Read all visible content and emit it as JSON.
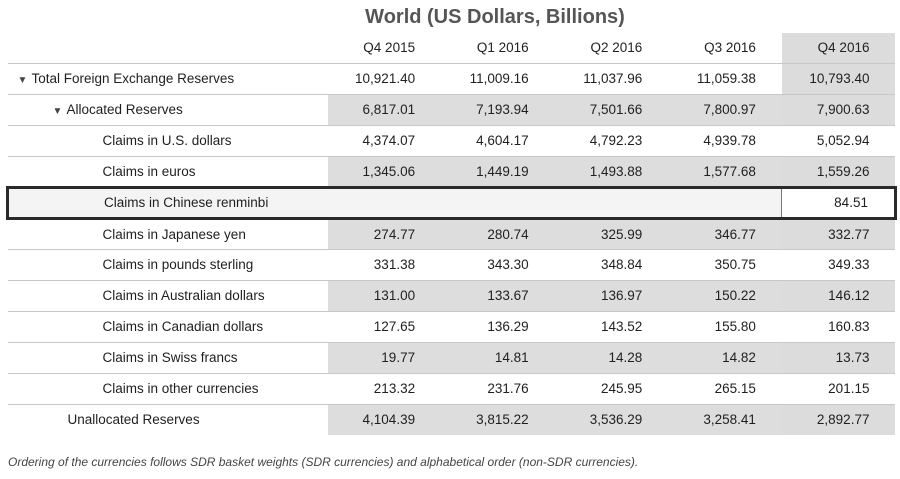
{
  "title": "World (US Dollars, Billions)",
  "columns": [
    "Q4 2015",
    "Q1 2016",
    "Q2 2016",
    "Q3 2016",
    "Q4 2016"
  ],
  "rows": [
    {
      "label": "Total Foreign Exchange Reserves",
      "values": [
        "10,921.40",
        "11,009.16",
        "11,037.96",
        "11,059.38",
        "10,793.40"
      ]
    },
    {
      "label": "Allocated Reserves",
      "values": [
        "6,817.01",
        "7,193.94",
        "7,501.66",
        "7,800.97",
        "7,900.63"
      ]
    },
    {
      "label": "Claims in U.S. dollars",
      "values": [
        "4,374.07",
        "4,604.17",
        "4,792.23",
        "4,939.78",
        "5,052.94"
      ]
    },
    {
      "label": "Claims in euros",
      "values": [
        "1,345.06",
        "1,449.19",
        "1,493.88",
        "1,577.68",
        "1,559.26"
      ]
    },
    {
      "label": "Claims in Chinese renminbi",
      "values": [
        "",
        "",
        "",
        "",
        "84.51"
      ]
    },
    {
      "label": "Claims in Japanese yen",
      "values": [
        "274.77",
        "280.74",
        "325.99",
        "346.77",
        "332.77"
      ]
    },
    {
      "label": "Claims in pounds sterling",
      "values": [
        "331.38",
        "343.30",
        "348.84",
        "350.75",
        "349.33"
      ]
    },
    {
      "label": "Claims in Australian dollars",
      "values": [
        "131.00",
        "133.67",
        "136.97",
        "150.22",
        "146.12"
      ]
    },
    {
      "label": "Claims in Canadian dollars",
      "values": [
        "127.65",
        "136.29",
        "143.52",
        "155.80",
        "160.83"
      ]
    },
    {
      "label": "Claims in Swiss francs",
      "values": [
        "19.77",
        "14.81",
        "14.28",
        "14.82",
        "13.73"
      ]
    },
    {
      "label": "Claims in other currencies",
      "values": [
        "213.32",
        "231.76",
        "245.95",
        "265.15",
        "201.15"
      ]
    },
    {
      "label": "Unallocated Reserves",
      "values": [
        "4,104.39",
        "3,815.22",
        "3,536.29",
        "3,258.41",
        "2,892.77"
      ]
    }
  ],
  "footnote": "Ordering of the currencies follows SDR basket weights (SDR currencies) and alphabetical order (non-SDR currencies).",
  "icons": {
    "expand": "chevron-down-icon"
  }
}
